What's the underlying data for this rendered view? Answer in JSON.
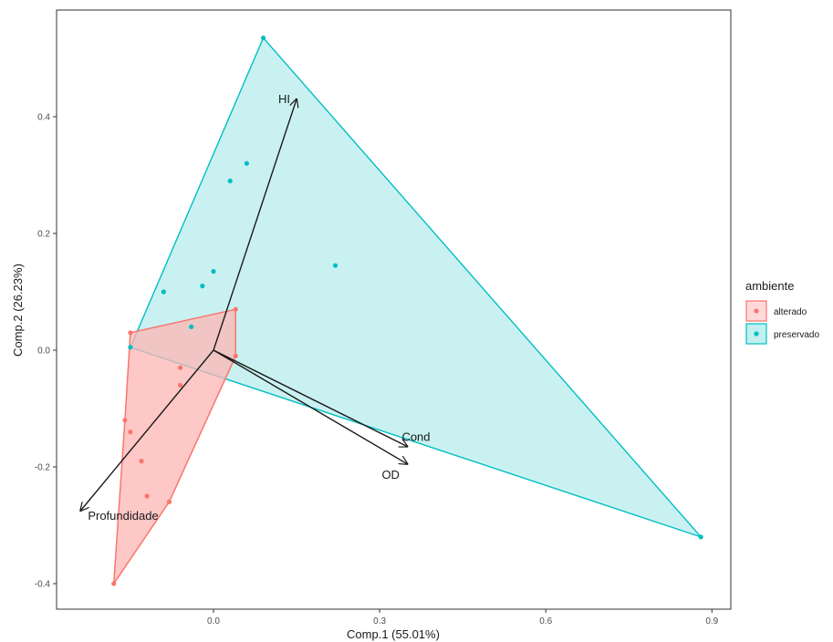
{
  "chart_data": {
    "type": "scatter",
    "subtype": "pca-biplot-with-convex-hulls",
    "xlabel": "Comp.1 (55.01%)",
    "ylabel": "Comp.2 (26.23%)",
    "xlim": [
      -0.4,
      0.92
    ],
    "ylim": [
      -0.44,
      0.58
    ],
    "xticks": [
      0.0,
      0.3,
      0.6,
      0.9
    ],
    "xtick_labels": [
      "0.0",
      "0.3",
      "0.6",
      "0.9"
    ],
    "yticks": [
      -0.4,
      -0.2,
      0.0,
      0.2,
      0.4
    ],
    "ytick_labels": [
      "-0.4",
      "-0.2",
      "0.0",
      "0.2",
      "0.4"
    ],
    "grid": false,
    "legend": {
      "title": "ambiente",
      "position": "right",
      "entries": [
        "alterado",
        "preservado"
      ]
    },
    "series": [
      {
        "name": "alterado",
        "color": "#F8766D",
        "fill": "#FFCCCC",
        "points": [
          {
            "x": -0.15,
            "y": 0.03
          },
          {
            "x": 0.04,
            "y": 0.07
          },
          {
            "x": 0.04,
            "y": -0.01
          },
          {
            "x": -0.06,
            "y": -0.03
          },
          {
            "x": -0.06,
            "y": -0.06
          },
          {
            "x": -0.16,
            "y": -0.12
          },
          {
            "x": -0.15,
            "y": -0.14
          },
          {
            "x": -0.13,
            "y": -0.19
          },
          {
            "x": -0.12,
            "y": -0.25
          },
          {
            "x": -0.08,
            "y": -0.26
          },
          {
            "x": -0.18,
            "y": -0.4
          }
        ],
        "hull": [
          {
            "x": -0.15,
            "y": 0.03
          },
          {
            "x": 0.04,
            "y": 0.07
          },
          {
            "x": 0.04,
            "y": -0.01
          },
          {
            "x": -0.08,
            "y": -0.26
          },
          {
            "x": -0.18,
            "y": -0.4
          },
          {
            "x": -0.16,
            "y": -0.12
          }
        ]
      },
      {
        "name": "preservado",
        "color": "#00BFC4",
        "fill": "#AEE9EA",
        "points": [
          {
            "x": 0.09,
            "y": 0.535
          },
          {
            "x": 0.06,
            "y": 0.32
          },
          {
            "x": 0.03,
            "y": 0.29
          },
          {
            "x": 0.22,
            "y": 0.145
          },
          {
            "x": 0.0,
            "y": 0.135
          },
          {
            "x": -0.02,
            "y": 0.11
          },
          {
            "x": -0.09,
            "y": 0.1
          },
          {
            "x": -0.04,
            "y": 0.04
          },
          {
            "x": -0.15,
            "y": 0.005
          },
          {
            "x": 0.88,
            "y": -0.32
          }
        ],
        "hull": [
          {
            "x": 0.09,
            "y": 0.535
          },
          {
            "x": 0.88,
            "y": -0.32
          },
          {
            "x": -0.15,
            "y": 0.005
          }
        ]
      }
    ],
    "arrows": [
      {
        "label": "HI",
        "x": 0.15,
        "y": 0.43
      },
      {
        "label": "Cond",
        "x": 0.35,
        "y": -0.165
      },
      {
        "label": "OD",
        "x": 0.35,
        "y": -0.195
      },
      {
        "label": "Profundidade",
        "x": -0.24,
        "y": -0.275
      }
    ],
    "arrow_origin": {
      "x": 0.0,
      "y": 0.0
    }
  }
}
